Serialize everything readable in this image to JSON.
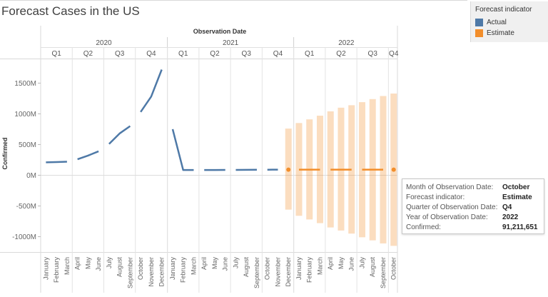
{
  "title": "Forecast Cases in the US",
  "legend": {
    "title": "Forecast indicator",
    "items": [
      {
        "label": "Actual",
        "color": "#4e79a7"
      },
      {
        "label": "Estimate",
        "color": "#f28e2b"
      }
    ]
  },
  "tooltip": {
    "rows": [
      {
        "label": "Month of Observation Date:",
        "value": "October"
      },
      {
        "label": "Forecast indicator:",
        "value": "Estimate"
      },
      {
        "label": "Quarter of Observation Date:",
        "value": "Q4"
      },
      {
        "label": "Year of Observation Date:",
        "value": "2022"
      },
      {
        "label": "Confirmed:",
        "value": "91,211,651"
      }
    ]
  },
  "chart_data": {
    "type": "line",
    "xlabel": "Observation Date",
    "ylabel": "Confirmed",
    "ylim": [
      -1250,
      1900
    ],
    "y_ticks": [
      -1000,
      -500,
      0,
      500,
      1000,
      1500
    ],
    "y_tick_labels": [
      "-1000M",
      "-500M",
      "0M",
      "500M",
      "1000M",
      "1500M"
    ],
    "years": [
      {
        "label": "2020",
        "quarters": [
          {
            "label": "Q1",
            "months": [
              "January",
              "February",
              "March"
            ]
          },
          {
            "label": "Q2",
            "months": [
              "April",
              "May",
              "June"
            ]
          },
          {
            "label": "Q3",
            "months": [
              "July",
              "August",
              "September"
            ]
          },
          {
            "label": "Q4",
            "months": [
              "October",
              "November",
              "December"
            ]
          }
        ]
      },
      {
        "label": "2021",
        "quarters": [
          {
            "label": "Q1",
            "months": [
              "January",
              "February",
              "March"
            ]
          },
          {
            "label": "Q2",
            "months": [
              "April",
              "May",
              "June"
            ]
          },
          {
            "label": "Q3",
            "months": [
              "July",
              "August",
              "September"
            ]
          },
          {
            "label": "Q4",
            "months": [
              "October",
              "November",
              "December"
            ]
          }
        ]
      },
      {
        "label": "2022",
        "quarters": [
          {
            "label": "Q1",
            "months": [
              "January",
              "February",
              "March"
            ]
          },
          {
            "label": "Q2",
            "months": [
              "April",
              "May",
              "June"
            ]
          },
          {
            "label": "Q3",
            "months": [
              "July",
              "August",
              "September"
            ]
          },
          {
            "label": "Q4",
            "months": [
              "October"
            ]
          }
        ]
      }
    ],
    "series": [
      {
        "name": "Actual",
        "color": "#4e79a7",
        "values": [
          210,
          215,
          220,
          260,
          320,
          390,
          510,
          680,
          800,
          1030,
          1280,
          1720,
          750,
          85,
          85,
          85,
          85,
          86,
          87,
          88,
          89,
          90,
          91,
          null,
          null,
          null,
          null,
          null,
          null,
          null,
          null,
          null,
          null,
          null
        ]
      },
      {
        "name": "Estimate",
        "color": "#f28e2b",
        "values": [
          null,
          null,
          null,
          null,
          null,
          null,
          null,
          null,
          null,
          null,
          null,
          null,
          null,
          null,
          null,
          null,
          null,
          null,
          null,
          null,
          null,
          null,
          null,
          91,
          91,
          91,
          91,
          91,
          91,
          91,
          91,
          91,
          91,
          91
        ]
      }
    ],
    "estimate_band": {
      "color": "#f28e2b",
      "lower": [
        null,
        null,
        null,
        null,
        null,
        null,
        null,
        null,
        null,
        null,
        null,
        null,
        null,
        null,
        null,
        null,
        null,
        null,
        null,
        null,
        null,
        null,
        null,
        -560,
        -660,
        -720,
        -780,
        -850,
        -900,
        -950,
        -1010,
        -1060,
        -1110,
        -1150
      ],
      "upper": [
        null,
        null,
        null,
        null,
        null,
        null,
        null,
        null,
        null,
        null,
        null,
        null,
        null,
        null,
        null,
        null,
        null,
        null,
        null,
        null,
        null,
        null,
        null,
        760,
        850,
        910,
        970,
        1040,
        1100,
        1140,
        1190,
        1240,
        1290,
        1330
      ]
    }
  }
}
